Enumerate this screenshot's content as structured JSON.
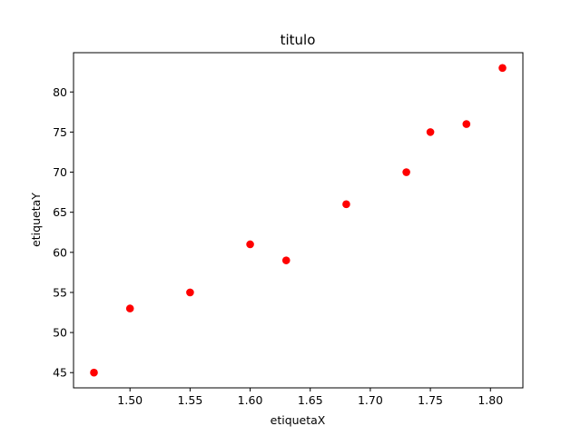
{
  "chart_data": {
    "type": "scatter",
    "title": "titulo",
    "xlabel": "etiquetaX",
    "ylabel": "etiquetaY",
    "x": [
      1.47,
      1.5,
      1.55,
      1.6,
      1.63,
      1.68,
      1.73,
      1.75,
      1.78,
      1.81
    ],
    "y": [
      45,
      53,
      55,
      61,
      59,
      66,
      70,
      75,
      76,
      83
    ],
    "xlim": [
      1.453,
      1.827
    ],
    "ylim": [
      43.1,
      84.9
    ],
    "xticks": [
      "1.50",
      "1.55",
      "1.60",
      "1.65",
      "1.70",
      "1.75",
      "1.80"
    ],
    "yticks": [
      "45",
      "50",
      "55",
      "60",
      "65",
      "70",
      "75",
      "80"
    ],
    "marker_color": "#ff0000",
    "grid": false,
    "legend": "none"
  }
}
